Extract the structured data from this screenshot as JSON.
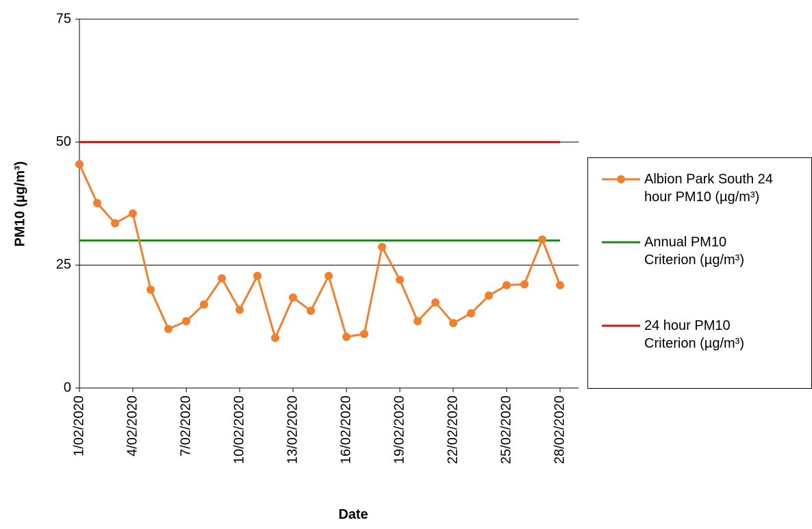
{
  "chart_data": {
    "type": "line",
    "y_label": "PM10 (µg/m³)",
    "x_label": "Date",
    "categories": [
      "1/02/2020",
      null,
      null,
      "4/02/2020",
      null,
      null,
      "7/02/2020",
      null,
      null,
      "10/02/2020",
      null,
      null,
      "13/02/2020",
      null,
      null,
      "16/02/2020",
      null,
      null,
      "19/02/2020",
      null,
      null,
      "22/02/2020",
      null,
      null,
      "25/02/2020",
      null,
      null,
      "28/02/2020"
    ],
    "series": [
      {
        "name": "Albion Park South 24 hour PM10 (µg/m³)",
        "color": "#f07f2e",
        "marker": true,
        "values": [
          45.5,
          37.6,
          33.5,
          35.5,
          20.0,
          12.0,
          13.6,
          17.0,
          22.3,
          15.9,
          22.8,
          10.2,
          18.4,
          15.7,
          22.8,
          10.4,
          11.0,
          28.7,
          22.0,
          13.6,
          17.4,
          13.2,
          15.2,
          18.8,
          20.9,
          21.1,
          30.2,
          20.9
        ]
      },
      {
        "name": "Annual PM10 Criterion (µg/m³)",
        "color": "#1a8a1a",
        "marker": false,
        "values": [
          30,
          30,
          30,
          30,
          30,
          30,
          30,
          30,
          30,
          30,
          30,
          30,
          30,
          30,
          30,
          30,
          30,
          30,
          30,
          30,
          30,
          30,
          30,
          30,
          30,
          30,
          30,
          30
        ]
      },
      {
        "name": "24 hour PM10 Criterion (µg/m³)",
        "color": "#d01414",
        "marker": false,
        "values": [
          50,
          50,
          50,
          50,
          50,
          50,
          50,
          50,
          50,
          50,
          50,
          50,
          50,
          50,
          50,
          50,
          50,
          50,
          50,
          50,
          50,
          50,
          50,
          50,
          50,
          50,
          50,
          50
        ]
      }
    ],
    "ylim": [
      0,
      75
    ],
    "yticks": [
      0,
      25,
      50,
      75
    ],
    "grid": true,
    "legend": "right"
  }
}
